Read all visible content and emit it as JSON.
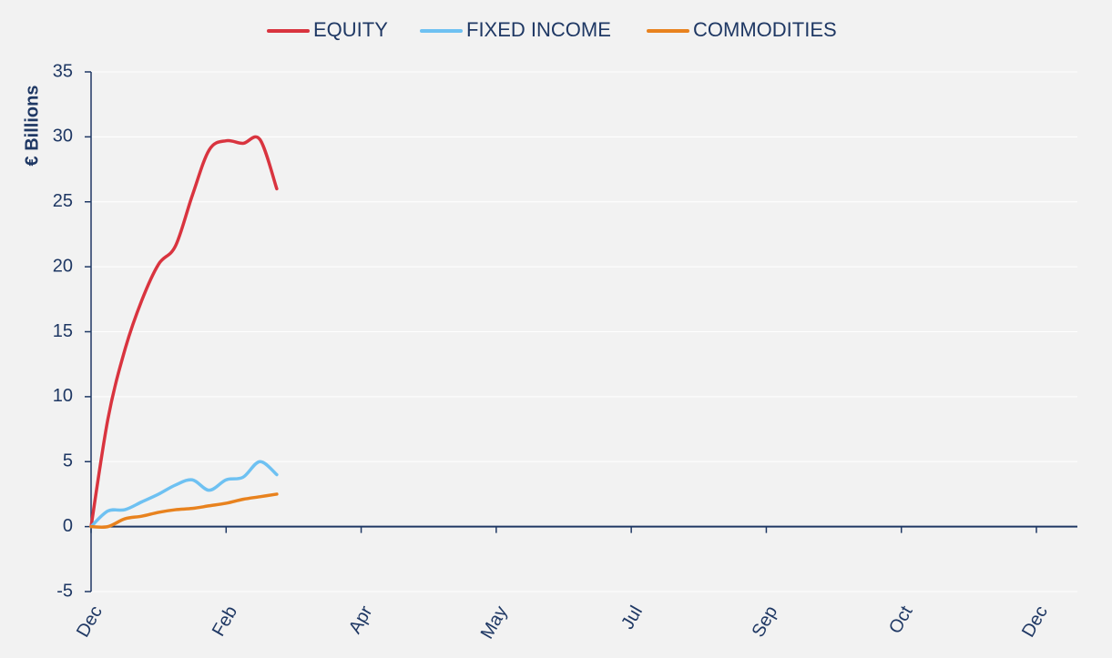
{
  "chart_data": {
    "type": "line",
    "ylabel": "€ Billions",
    "categories": [
      "Dec",
      null,
      null,
      null,
      null,
      null,
      null,
      null,
      "Feb",
      null,
      null,
      null,
      null,
      null,
      null,
      null,
      "Apr",
      null,
      null,
      null,
      null,
      null,
      null,
      null,
      "May",
      null,
      null,
      null,
      null,
      null,
      null,
      null,
      "Jul",
      null,
      null,
      null,
      null,
      null,
      null,
      null,
      "Sep",
      null,
      null,
      null,
      null,
      null,
      null,
      null,
      "Oct",
      null,
      null,
      null,
      null,
      null,
      null,
      null,
      "Dec"
    ],
    "series": [
      {
        "name": "EQUITY",
        "color": "#d9343f",
        "values": [
          0,
          8.3,
          13.6,
          17.4,
          20.2,
          21.6,
          25.5,
          29,
          29.7,
          29.5,
          29.8,
          26,
          null,
          null,
          null,
          null,
          null,
          null,
          null,
          null,
          null,
          null,
          null,
          null,
          null,
          null,
          null,
          null,
          null,
          null,
          null,
          null,
          null,
          null,
          null,
          null,
          null,
          null,
          null,
          null,
          null,
          null,
          null,
          null,
          null,
          null,
          null,
          null,
          null,
          null,
          null,
          null,
          null,
          null,
          null,
          null,
          null
        ]
      },
      {
        "name": "FIXED INCOME",
        "color": "#6ec1f2",
        "values": [
          0,
          1.2,
          1.3,
          1.9,
          2.5,
          3.2,
          3.6,
          2.8,
          3.6,
          3.8,
          5,
          4,
          null,
          null,
          null,
          null,
          null,
          null,
          null,
          null,
          null,
          null,
          null,
          null,
          null,
          null,
          null,
          null,
          null,
          null,
          null,
          null,
          null,
          null,
          null,
          null,
          null,
          null,
          null,
          null,
          null,
          null,
          null,
          null,
          null,
          null,
          null,
          null,
          null,
          null,
          null,
          null,
          null,
          null,
          null,
          null,
          null
        ]
      },
      {
        "name": "COMMODITIES",
        "color": "#e8821e",
        "values": [
          0,
          0,
          0.6,
          0.8,
          1.1,
          1.3,
          1.4,
          1.6,
          1.8,
          2.1,
          2.3,
          2.5,
          null,
          null,
          null,
          null,
          null,
          null,
          null,
          null,
          null,
          null,
          null,
          null,
          null,
          null,
          null,
          null,
          null,
          null,
          null,
          null,
          null,
          null,
          null,
          null,
          null,
          null,
          null,
          null,
          null,
          null,
          null,
          null,
          null,
          null,
          null,
          null,
          null,
          null,
          null,
          null,
          null,
          null,
          null,
          null,
          null
        ]
      }
    ],
    "ylim": [
      -5,
      35
    ],
    "yticks": [
      -5,
      0,
      5,
      10,
      15,
      20,
      25,
      30,
      35
    ],
    "grid": true,
    "legend": "top"
  }
}
